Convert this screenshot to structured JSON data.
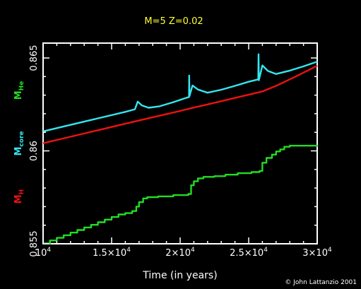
{
  "chart_data": {
    "type": "line",
    "title": "M=5 Z=0.02",
    "xlabel": "Time (in years)",
    "credit": "© John Lattanzio 2001",
    "ylabels": [
      {
        "main": "M",
        "sub": "He",
        "color": "#22dd22"
      },
      {
        "main": "M",
        "sub": "core",
        "color": "#33e6f0"
      },
      {
        "main": "M",
        "sub": "H",
        "color": "#ee1111"
      }
    ],
    "xlim": [
      10000,
      30000
    ],
    "ylim": [
      0.855,
      0.8658
    ],
    "xticks": [
      {
        "value": 10000,
        "base": "10",
        "exp": "4"
      },
      {
        "value": 15000,
        "base": "1.5×10",
        "exp": "4"
      },
      {
        "value": 20000,
        "base": "2×10",
        "exp": "4"
      },
      {
        "value": 25000,
        "base": "2.5×10",
        "exp": "4"
      },
      {
        "value": 30000,
        "base": "3×10",
        "exp": "4"
      }
    ],
    "yticks": [
      {
        "value": 0.855,
        "label": "0.855"
      },
      {
        "value": 0.86,
        "label": "0.86"
      },
      {
        "value": 0.865,
        "label": "0.865"
      }
    ],
    "grid": false,
    "series": [
      {
        "name": "M_H",
        "color": "#ee1111",
        "points": [
          [
            10000,
            0.86041
          ],
          [
            12000,
            0.86076
          ],
          [
            14000,
            0.86111
          ],
          [
            16000,
            0.86146
          ],
          [
            18000,
            0.86181
          ],
          [
            20000,
            0.86215
          ],
          [
            20700,
            0.86228
          ],
          [
            22000,
            0.8625
          ],
          [
            24000,
            0.86285
          ],
          [
            26000,
            0.8632
          ],
          [
            27000,
            0.8635
          ],
          [
            28000,
            0.86385
          ],
          [
            29000,
            0.86421
          ],
          [
            30000,
            0.86458
          ]
        ]
      },
      {
        "name": "M_core",
        "color": "#33e6f0",
        "points": [
          [
            10000,
            0.86105
          ],
          [
            12000,
            0.8614
          ],
          [
            14000,
            0.86175
          ],
          [
            16000,
            0.8621
          ],
          [
            16700,
            0.86224
          ],
          [
            16900,
            0.86265
          ],
          [
            17200,
            0.86245
          ],
          [
            17700,
            0.86232
          ],
          [
            18500,
            0.8624
          ],
          [
            19500,
            0.86262
          ],
          [
            20300,
            0.86282
          ],
          [
            20650,
            0.8629
          ],
          [
            20660,
            0.86405
          ],
          [
            20680,
            0.86295
          ],
          [
            20900,
            0.86352
          ],
          [
            21300,
            0.8633
          ],
          [
            22000,
            0.86313
          ],
          [
            23000,
            0.86329
          ],
          [
            24000,
            0.8635
          ],
          [
            25000,
            0.86372
          ],
          [
            25700,
            0.86385
          ],
          [
            25720,
            0.8652
          ],
          [
            25740,
            0.8638
          ],
          [
            26000,
            0.8646
          ],
          [
            26400,
            0.8643
          ],
          [
            27000,
            0.86414
          ],
          [
            28000,
            0.86432
          ],
          [
            29000,
            0.86455
          ],
          [
            30000,
            0.8648
          ]
        ]
      },
      {
        "name": "M_He",
        "color": "#22dd22",
        "type": "step",
        "points": [
          [
            10000,
            0.85502
          ],
          [
            10500,
            0.85518
          ],
          [
            11000,
            0.85532
          ],
          [
            11500,
            0.85546
          ],
          [
            12000,
            0.8556
          ],
          [
            12500,
            0.85574
          ],
          [
            13000,
            0.85588
          ],
          [
            13500,
            0.85602
          ],
          [
            14000,
            0.85616
          ],
          [
            14500,
            0.8563
          ],
          [
            15000,
            0.85644
          ],
          [
            15500,
            0.85658
          ],
          [
            16000,
            0.85665
          ],
          [
            16500,
            0.85676
          ],
          [
            16800,
            0.857
          ],
          [
            17000,
            0.85724
          ],
          [
            17300,
            0.85744
          ],
          [
            17600,
            0.85751
          ],
          [
            18400,
            0.85755
          ],
          [
            19500,
            0.85762
          ],
          [
            20600,
            0.85768
          ],
          [
            20800,
            0.85815
          ],
          [
            21000,
            0.85836
          ],
          [
            21300,
            0.85852
          ],
          [
            21700,
            0.8586
          ],
          [
            22500,
            0.85864
          ],
          [
            23300,
            0.85872
          ],
          [
            24200,
            0.8588
          ],
          [
            25200,
            0.85886
          ],
          [
            25800,
            0.85892
          ],
          [
            26000,
            0.85936
          ],
          [
            26300,
            0.85962
          ],
          [
            26700,
            0.8598
          ],
          [
            27000,
            0.85997
          ],
          [
            27300,
            0.86008
          ],
          [
            27600,
            0.86022
          ],
          [
            28000,
            0.86028
          ],
          [
            30000,
            0.8603
          ]
        ]
      }
    ]
  }
}
